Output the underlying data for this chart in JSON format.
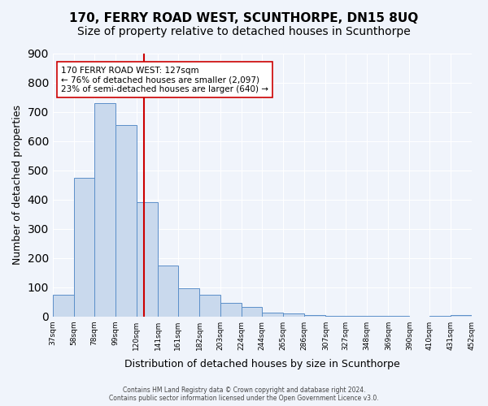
{
  "title": "170, FERRY ROAD WEST, SCUNTHORPE, DN15 8UQ",
  "subtitle": "Size of property relative to detached houses in Scunthorpe",
  "xlabel": "Distribution of detached houses by size in Scunthorpe",
  "ylabel": "Number of detached properties",
  "bar_values": [
    75,
    475,
    730,
    655,
    390,
    175,
    97,
    75,
    45,
    32,
    12,
    10,
    5,
    3,
    2,
    1,
    1,
    0,
    1,
    5
  ],
  "bin_edges": [
    37,
    58,
    78,
    99,
    120,
    141,
    161,
    182,
    203,
    224,
    244,
    265,
    286,
    307,
    327,
    348,
    369,
    390,
    410,
    431,
    452
  ],
  "x_labels": [
    "37sqm",
    "58sqm",
    "78sqm",
    "99sqm",
    "120sqm",
    "141sqm",
    "161sqm",
    "182sqm",
    "203sqm",
    "224sqm",
    "244sqm",
    "265sqm",
    "286sqm",
    "307sqm",
    "327sqm",
    "348sqm",
    "369sqm",
    "390sqm",
    "410sqm",
    "431sqm",
    "452sqm"
  ],
  "bar_color": "#c9d9ed",
  "bar_edge_color": "#5b8fc9",
  "property_line_x": 127,
  "property_line_color": "#cc0000",
  "annotation_title": "170 FERRY ROAD WEST: 127sqm",
  "annotation_line1": "← 76% of detached houses are smaller (2,097)",
  "annotation_line2": "23% of semi-detached houses are larger (640) →",
  "annotation_box_color": "#ffffff",
  "annotation_box_edge": "#cc0000",
  "ylim": [
    0,
    900
  ],
  "yticks": [
    0,
    100,
    200,
    300,
    400,
    500,
    600,
    700,
    800,
    900
  ],
  "background_color": "#f0f4fb",
  "footer1": "Contains HM Land Registry data © Crown copyright and database right 2024.",
  "footer2": "Contains public sector information licensed under the Open Government Licence v3.0.",
  "title_fontsize": 11,
  "subtitle_fontsize": 10
}
